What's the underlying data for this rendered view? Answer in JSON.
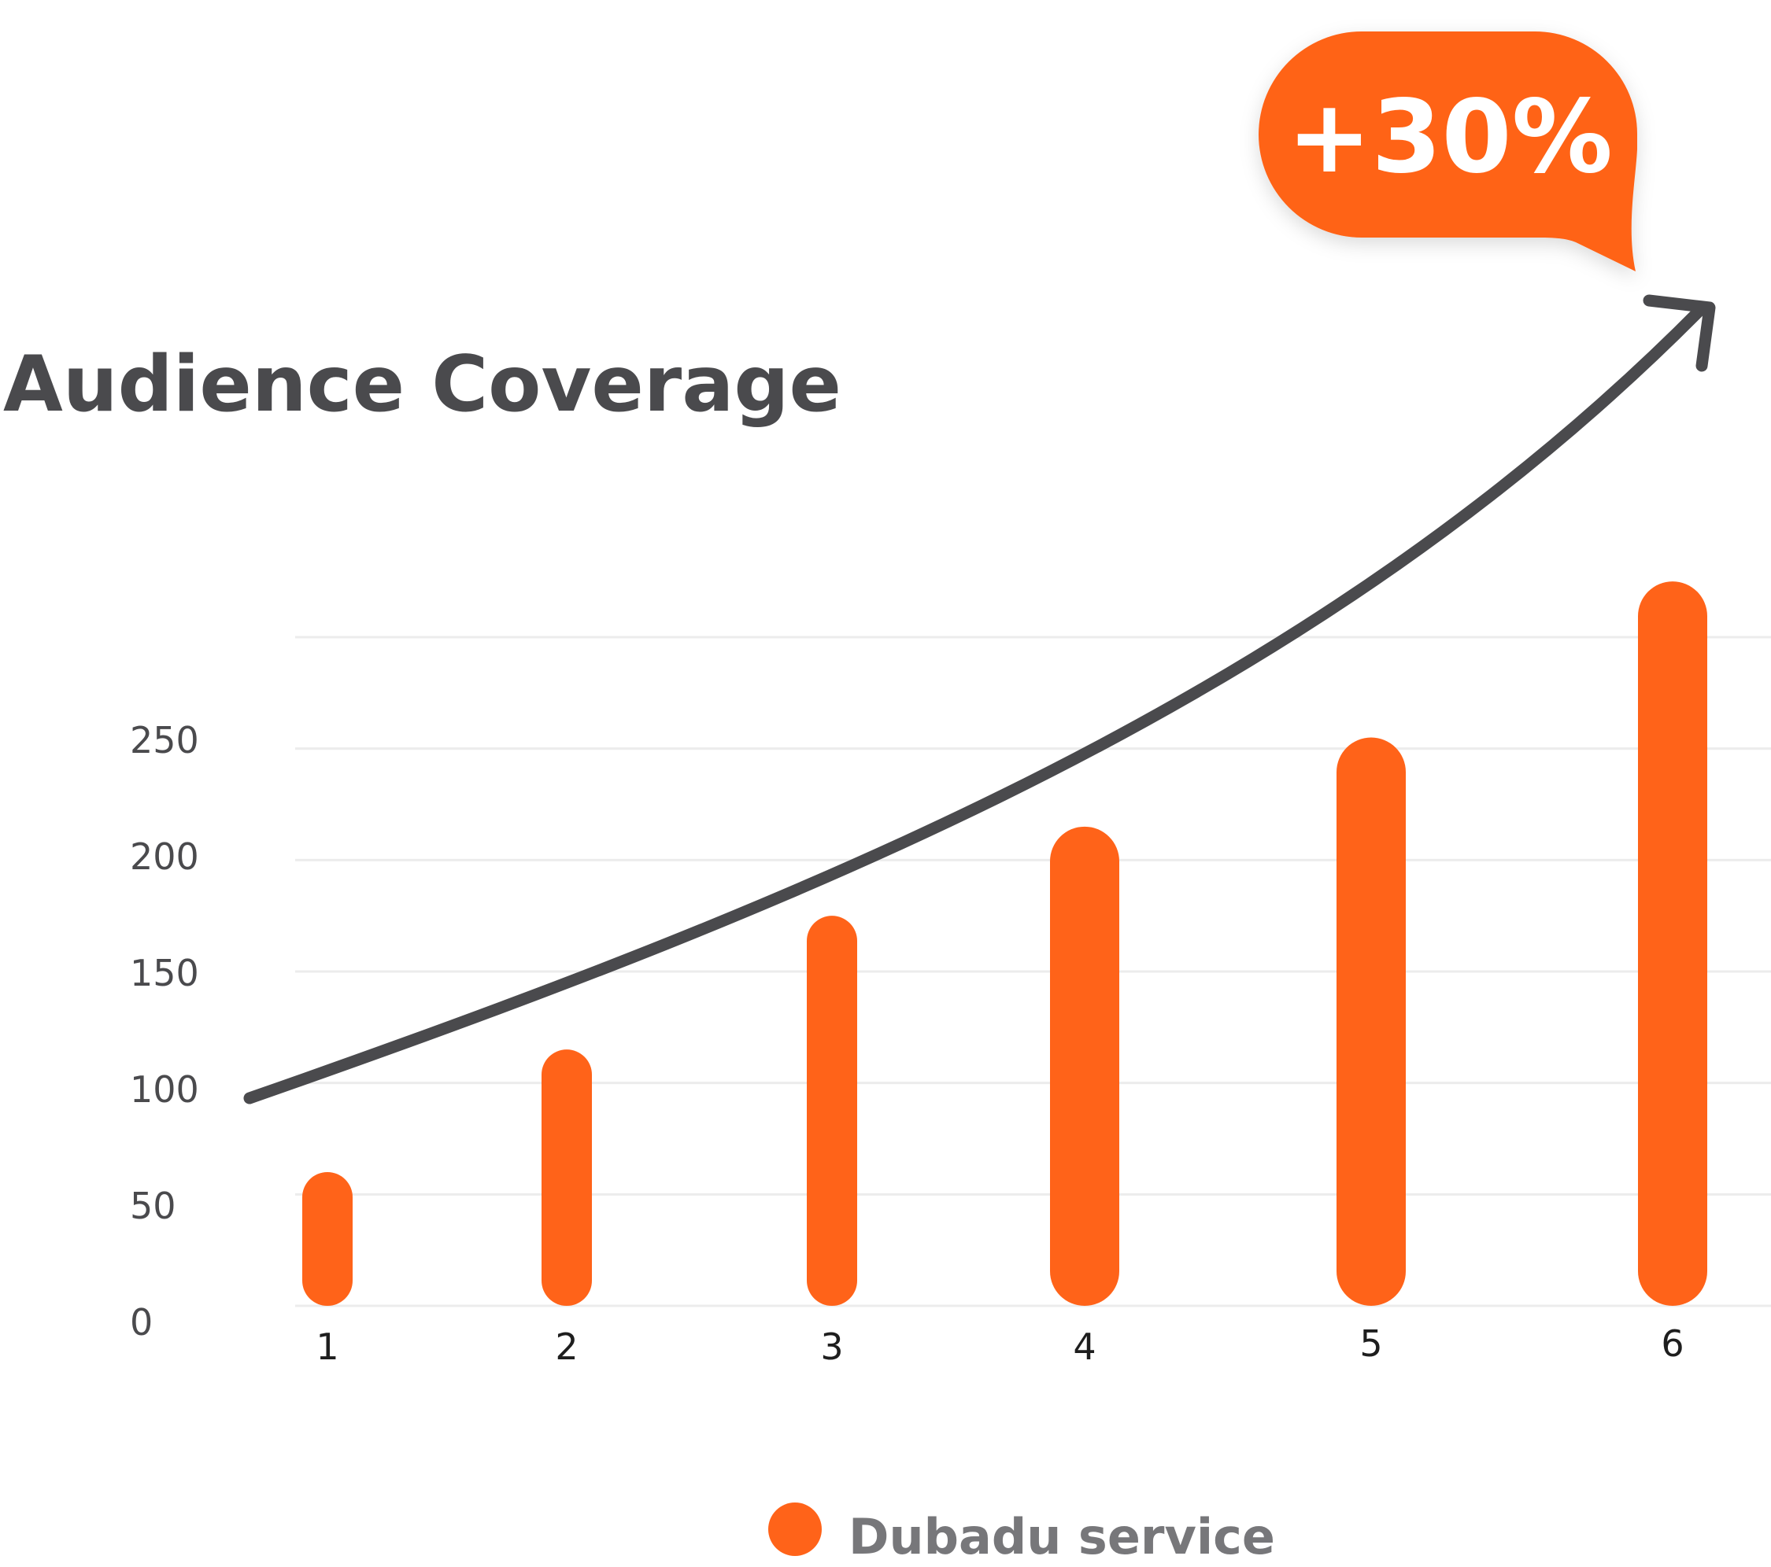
{
  "chart_data": {
    "type": "bar",
    "title": "Audience Coverage",
    "categories": [
      "1",
      "2",
      "3",
      "4",
      "5",
      "6"
    ],
    "series": [
      {
        "name": "Dubadu service",
        "values": [
          60,
          115,
          175,
          215,
          255,
          325
        ]
      }
    ],
    "yticks": [
      "0",
      "50",
      "100",
      "150",
      "200",
      "250"
    ],
    "ylim": [
      0,
      300
    ],
    "grid": true,
    "legend_position": "bottom-center",
    "annotation": {
      "text": "+30%",
      "kind": "trend-arrow-callout"
    }
  },
  "colors": {
    "bar": "#ff6319",
    "badge": "#ff6319",
    "arrow": "#4a4a4d",
    "title": "#4a4a4d",
    "legend_dot": "#ff6319",
    "legend_text": "#77777a"
  }
}
